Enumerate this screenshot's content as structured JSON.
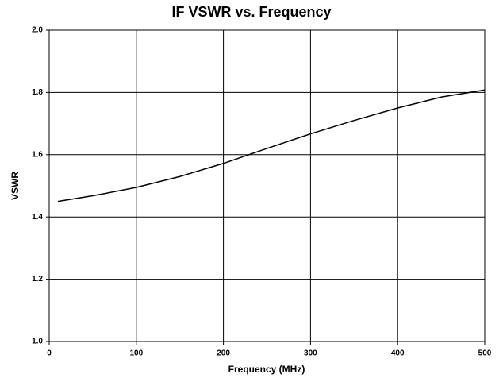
{
  "chart_data": {
    "type": "line",
    "title": "IF VSWR vs. Frequency",
    "x_label": "Frequency (MHz)",
    "y_label": "VSWR",
    "x": [
      10,
      50,
      100,
      150,
      200,
      250,
      300,
      350,
      400,
      450,
      500
    ],
    "series": [
      {
        "name": "VSWR",
        "color": "#000000",
        "values": [
          1.45,
          1.468,
          1.495,
          1.53,
          1.572,
          1.62,
          1.667,
          1.71,
          1.75,
          1.785,
          1.808
        ]
      }
    ],
    "xlim": [
      0,
      500
    ],
    "xticks": [
      0,
      100,
      200,
      300,
      400,
      500
    ],
    "ylim": [
      1,
      2
    ],
    "yticks": [
      {
        "value": 1,
        "label": "1.0"
      },
      {
        "value": 1.2,
        "label": "1.2"
      },
      {
        "value": 1.4,
        "label": "1.4"
      },
      {
        "value": 1.6,
        "label": "1.6"
      },
      {
        "value": 1.8,
        "label": "1.8"
      },
      {
        "value": 2,
        "label": "2.0"
      }
    ],
    "grid": true
  }
}
